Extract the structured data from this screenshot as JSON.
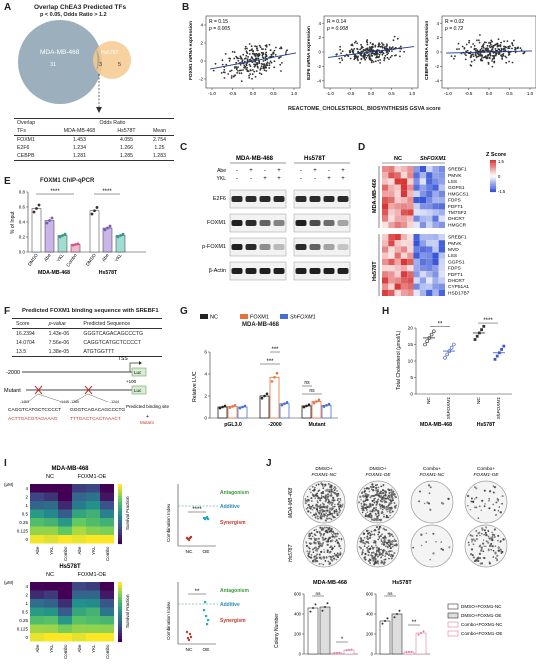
{
  "panels": {
    "A": {
      "label": "A",
      "title": "Overlap ChEA3 Predicted TFs",
      "subtitle": "p < 0.05, Odds Ratio > 1.2",
      "venn": {
        "left_label": "MDA-MB-468",
        "right_label": "Hs578T",
        "left_only": "31",
        "overlap": "3",
        "right_only": "5"
      },
      "table": {
        "header_top": [
          "Overlap",
          "Odds Ratio"
        ],
        "header": [
          "TFs",
          "MDA-MB-468",
          "Hs578T",
          "Mean"
        ],
        "rows": [
          [
            "FOXM1",
            "1.453",
            "4.055",
            "2.754"
          ],
          [
            "E2F6",
            "1.234",
            "1.266",
            "1.25"
          ],
          [
            "CEBPB",
            "1.281",
            "1.285",
            "1.283"
          ]
        ]
      }
    },
    "B": {
      "label": "B",
      "xlabel": "REACTOME_CHOLESTEROL_BIOSYNTHESIS GSVA score",
      "plots": [
        {
          "ylabel": "FOXM1 mRNA expression",
          "r": "R = 0.15",
          "p": "p = 0.005",
          "yticks": [
            "4",
            "2",
            "0",
            "-2"
          ],
          "ylim": [
            -3,
            5
          ],
          "slope": 0.6,
          "spread": 1.6,
          "seed": 11
        },
        {
          "ylabel": "E2F6 mRNA expression",
          "r": "R = 0.14",
          "p": "p = 0.008",
          "yticks": [
            "4",
            "2",
            "0",
            "-2",
            "-4"
          ],
          "ylim": [
            -5,
            5
          ],
          "slope": 0.5,
          "spread": 1.3,
          "seed": 23
        },
        {
          "ylabel": "CEBPB mRNA expression",
          "r": "R = 0.02",
          "p": "p = 0.72",
          "yticks": [
            "4",
            "2",
            "0",
            "-2",
            "-4"
          ],
          "ylim": [
            -5,
            5
          ],
          "slope": 0.1,
          "spread": 1.5,
          "seed": 37
        }
      ],
      "xticks": [
        "-1.0",
        "-0.5",
        "0.0",
        "0.5",
        "1.0"
      ]
    },
    "C": {
      "label": "C",
      "cells": [
        "MDA-MB-468",
        "Hs578T"
      ],
      "treat_rows": [
        {
          "name": "Abe",
          "marks": [
            "-",
            "+",
            "-",
            "+",
            "-",
            "+",
            "-",
            "+"
          ]
        },
        {
          "name": "YKL",
          "marks": [
            "-",
            "-",
            "+",
            "+",
            "-",
            "-",
            "+",
            "+"
          ]
        }
      ],
      "blots": [
        {
          "name": "E2F6",
          "intensity": [
            0.85,
            0.85,
            0.85,
            0.85,
            0.85,
            0.85,
            0.85,
            0.85
          ]
        },
        {
          "name": "FOXM1",
          "intensity": [
            0.9,
            0.85,
            0.6,
            0.45,
            0.9,
            0.7,
            0.55,
            0.3
          ]
        },
        {
          "name": "p-FOXM1",
          "intensity": [
            0.9,
            0.85,
            0.4,
            0.2,
            0.85,
            0.6,
            0.3,
            0.15
          ]
        },
        {
          "name": "β-Actin",
          "intensity": [
            0.9,
            0.9,
            0.9,
            0.9,
            0.9,
            0.9,
            0.9,
            0.9
          ]
        }
      ]
    },
    "D": {
      "label": "D",
      "col_groups": [
        "NC",
        "ShFOXM1"
      ],
      "row_groups": [
        "MDA-MB-468",
        "Hs578T"
      ],
      "genes_top": [
        "SREBF1",
        "PMVK",
        "LSS",
        "GGPS1",
        "HMGCS1",
        "FDPS",
        "FDFT1",
        "TM7SF2",
        "DHCR7",
        "HMGCR"
      ],
      "genes_bottom": [
        "SREBF1",
        "PMVK",
        "MVD",
        "LSS",
        "GGPS1",
        "FDPS",
        "FDFT1",
        "DHCR7",
        "CYP51A1",
        "HSD17B7"
      ],
      "legend_title": "Z Score",
      "legend_ticks": [
        "1.5",
        "0",
        "-1.5"
      ]
    },
    "E": {
      "label": "E",
      "title": "FOXM1 ChIP-qPCR",
      "ylabel": "% of Input",
      "yticks": [
        "0.8",
        "0.6",
        "0.4",
        "0.2",
        "0.0"
      ],
      "groups": [
        "MDA-MB-468",
        "Hs578T"
      ],
      "bars_left": [
        {
          "name": "DMSO",
          "value": 0.58,
          "color": "#ffffff",
          "dot": "#333333"
        },
        {
          "name": "Abe",
          "value": 0.42,
          "color": "#c9b5e8",
          "dot": "#7a55b8"
        },
        {
          "name": "YKL",
          "value": 0.22,
          "color": "#9fdcd2",
          "dot": "#2a9a8a"
        },
        {
          "name": "Combo",
          "value": 0.1,
          "color": "#f4b7d0",
          "dot": "#d64f8a"
        }
      ],
      "bars_right": [
        {
          "name": "DMSO",
          "value": 0.55,
          "color": "#ffffff",
          "dot": "#333333"
        },
        {
          "name": "Abe",
          "value": 0.32,
          "color": "#c9b5e8",
          "dot": "#7a55b8"
        },
        {
          "name": "YKL",
          "value": 0.22,
          "color": "#9fdcd2",
          "dot": "#2a9a8a"
        }
      ],
      "sig": [
        "****",
        "****"
      ]
    },
    "F": {
      "label": "F",
      "title": "Predicted FOXM1 binding sequence with SREBF1",
      "header": [
        "Score",
        "p-value",
        "Predicted Sequence"
      ],
      "rows": [
        [
          "16.2394",
          "1.43e-06",
          "GGGTCAGACAGCCCTG"
        ],
        [
          "14.0704",
          "7.56e-06",
          "CAGGTCATGCTCCCCT"
        ],
        [
          "13.5",
          "1.38e-05",
          "ATGTGGTTT"
        ]
      ],
      "tss": "TSS",
      "luc": "Luc",
      "pos_start": "-2000",
      "pos_end": "+100",
      "mutant_label": "Mutant",
      "pos_a": "-1460",
      "pos_b": "-1445",
      "pos_c": "-1260",
      "pos_d": "-1244",
      "seq_a": "CAGGTCATGCTCCCCT",
      "seq_b": "GGGTCAGACAGCCCTG",
      "mut_a": "ACTTGACGTAGAAAG",
      "mut_b": "TTTGACTCACTAAACT",
      "legend_pred": "Predicted binding site",
      "legend_mut": "Mutant"
    },
    "G": {
      "label": "G",
      "title": "MDA-MB-468",
      "legend": [
        "NC",
        "FOXM1",
        "ShFOXM1"
      ],
      "ylabel": "Relative LUC",
      "yticks": [
        "6",
        "4",
        "2",
        "0"
      ],
      "groups": [
        "pGL3.0",
        "-2000",
        "Mutant"
      ],
      "values": [
        [
          1.0,
          1.05,
          1.0
        ],
        [
          2.0,
          3.7,
          1.3
        ],
        [
          1.1,
          1.5,
          1.15
        ]
      ],
      "colors": [
        "#222222",
        "#e8703a",
        "#4a6fd4"
      ],
      "sig": [
        "***",
        "ns",
        "ns"
      ]
    },
    "H": {
      "label": "H",
      "ylabel": "Total Cholesterol (μmol/L)",
      "yticks": [
        "20",
        "15",
        "10",
        "5",
        "0"
      ],
      "groups": [
        "MDA-MB-468",
        "Hs578T"
      ],
      "bar_names": [
        "NC",
        "ShFOXM1",
        "NC",
        "ShFOXM1"
      ],
      "values": [
        17,
        13,
        18.5,
        12.5
      ],
      "sig": [
        "**",
        "****"
      ]
    },
    "I": {
      "label": "I",
      "top_title": "MDA-MB-468",
      "bottom_title": "Hs578T",
      "col_groups": [
        "NC",
        "FOXM1-OE"
      ],
      "unit": "(μM)",
      "row_ticks": [
        "4",
        "2",
        "1",
        "0.5",
        "0.25",
        "0.125",
        "0"
      ],
      "col_ticks": [
        "Abe",
        "YKL",
        "Combo"
      ],
      "sf_label": "Survival Fraction",
      "ci_label": "Combination Index",
      "antagonism": "Antagonism",
      "additive": "Additive",
      "synergism": "Synergism",
      "x_labels": [
        "NC",
        "OE"
      ],
      "sig_top": "****",
      "sig_bottom": "**"
    },
    "J": {
      "label": "J",
      "col_labels": [
        "DMSO+ FOXM1-NC",
        "DMSO+ FOXM1-OE",
        "Combo+ FOXM1-NC",
        "Combo+ FOXM1-OE"
      ],
      "row_labels": [
        "MDA-MB-468",
        "Hs578T"
      ],
      "chart_titles": [
        "MDA-MB-468",
        "Hs578T"
      ],
      "ylabel": "Colony Number",
      "legend": [
        "DMSO+FOXM1-NC",
        "DMSO+FOXM1-OE",
        "Combo+FOXM1-NC",
        "Combo+FOXM1-OE"
      ],
      "sig_left": [
        "ns",
        "*"
      ],
      "sig_right": [
        "ns",
        "**"
      ]
    }
  },
  "chart_data": [
    {
      "type": "bar",
      "title": "FOXM1 ChIP-qPCR",
      "ylabel": "% of Input",
      "categories": [
        "DMSO",
        "Abe",
        "YKL",
        "Combo",
        "DMSO",
        "Abe",
        "YKL"
      ],
      "values": [
        0.58,
        0.42,
        0.22,
        0.1,
        0.55,
        0.32,
        0.22
      ],
      "ylim": [
        0,
        0.8
      ]
    },
    {
      "type": "bar",
      "title": "MDA-MB-468",
      "ylabel": "Relative LUC",
      "categories": [
        "pGL3.0",
        "-2000",
        "Mutant"
      ],
      "series": [
        {
          "name": "NC",
          "values": [
            1.0,
            2.0,
            1.1
          ]
        },
        {
          "name": "FOXM1",
          "values": [
            1.05,
            3.7,
            1.5
          ]
        },
        {
          "name": "ShFOXM1",
          "values": [
            1.0,
            1.3,
            1.15
          ]
        }
      ],
      "ylim": [
        0,
        6
      ]
    },
    {
      "type": "bar",
      "ylabel": "Total Cholesterol (μmol/L)",
      "categories": [
        "NC",
        "ShFOXM1",
        "NC",
        "ShFOXM1"
      ],
      "values": [
        17,
        13,
        18.5,
        12.5
      ],
      "ylim": [
        0,
        20
      ]
    },
    {
      "type": "bar",
      "title": "MDA-MB-468",
      "ylabel": "Colony Number",
      "categories": [
        "DMSO+FOXM1-NC",
        "DMSO+FOXM1-OE",
        "Combo+FOXM1-NC",
        "Combo+FOXM1-OE"
      ],
      "values": [
        460,
        470,
        10,
        40
      ],
      "ylim": [
        0,
        600
      ]
    },
    {
      "type": "bar",
      "title": "Hs578T",
      "ylabel": "Colony Number",
      "categories": [
        "DMSO+FOXM1-NC",
        "DMSO+FOXM1-OE",
        "Combo+FOXM1-NC",
        "Combo+FOXM1-OE"
      ],
      "values": [
        330,
        400,
        20,
        210
      ],
      "ylim": [
        0,
        600
      ]
    }
  ]
}
